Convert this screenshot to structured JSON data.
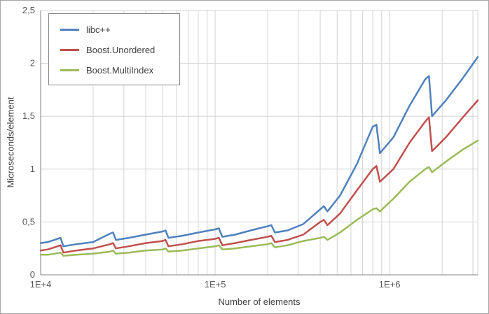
{
  "figure": {
    "background": "#FFFFFF",
    "border_color": "#A6A6A6"
  },
  "axes": {
    "text_color": "#595959",
    "gridline_color": "#D3D3D3",
    "axis_line_color": "#808080",
    "y_ticks": [
      {
        "value": 0,
        "label": "0"
      },
      {
        "value": 0.5,
        "label": "0,5"
      },
      {
        "value": 1,
        "label": "1"
      },
      {
        "value": 1.5,
        "label": "1,5"
      },
      {
        "value": 2,
        "label": "2"
      },
      {
        "value": 2.5,
        "label": "2,5"
      }
    ],
    "x_ticks": [
      {
        "value": 10000,
        "label": "1E+4"
      },
      {
        "value": 100000,
        "label": "1E+5"
      },
      {
        "value": 1000000,
        "label": "1E+6"
      }
    ]
  },
  "chart_data": {
    "type": "line",
    "title": "",
    "xlabel": "Number of elements",
    "ylabel": "Microseconds/element",
    "x_scale": "log",
    "xlim": [
      10000,
      3200000
    ],
    "ylim": [
      0,
      2.5
    ],
    "grid": true,
    "legend_position": "top-left",
    "x": [
      10000,
      11000,
      12000,
      13000,
      13500,
      16000,
      20000,
      25000,
      26000,
      27000,
      32000,
      40000,
      50000,
      52000,
      54000,
      65000,
      80000,
      100000,
      105000,
      110000,
      130000,
      160000,
      200000,
      210000,
      220000,
      260000,
      320000,
      400000,
      420000,
      440000,
      520000,
      650000,
      800000,
      840000,
      880000,
      1050000,
      1300000,
      1600000,
      1680000,
      1750000,
      2100000,
      2600000,
      3200000
    ],
    "series": [
      {
        "name": "libc++",
        "color": "#4F81BD",
        "values": [
          0.3,
          0.31,
          0.33,
          0.35,
          0.27,
          0.29,
          0.31,
          0.39,
          0.4,
          0.33,
          0.35,
          0.38,
          0.41,
          0.42,
          0.35,
          0.37,
          0.4,
          0.43,
          0.44,
          0.36,
          0.38,
          0.42,
          0.46,
          0.47,
          0.4,
          0.42,
          0.48,
          0.62,
          0.65,
          0.6,
          0.75,
          1.05,
          1.4,
          1.42,
          1.15,
          1.3,
          1.6,
          1.85,
          1.88,
          1.5,
          1.65,
          1.85,
          2.06
        ]
      },
      {
        "name": "Boost.Unordered",
        "color": "#C0504D",
        "values": [
          0.23,
          0.24,
          0.26,
          0.28,
          0.21,
          0.23,
          0.25,
          0.29,
          0.3,
          0.25,
          0.27,
          0.3,
          0.32,
          0.33,
          0.27,
          0.29,
          0.32,
          0.34,
          0.35,
          0.28,
          0.3,
          0.33,
          0.36,
          0.37,
          0.31,
          0.33,
          0.38,
          0.5,
          0.52,
          0.47,
          0.58,
          0.8,
          1.0,
          1.03,
          0.88,
          1.0,
          1.25,
          1.45,
          1.49,
          1.17,
          1.3,
          1.48,
          1.65
        ]
      },
      {
        "name": "Boost.MultiIndex",
        "color": "#9BBB59",
        "values": [
          0.19,
          0.19,
          0.2,
          0.21,
          0.18,
          0.19,
          0.2,
          0.22,
          0.23,
          0.2,
          0.21,
          0.23,
          0.24,
          0.25,
          0.22,
          0.23,
          0.25,
          0.27,
          0.28,
          0.24,
          0.25,
          0.27,
          0.29,
          0.3,
          0.26,
          0.28,
          0.32,
          0.35,
          0.36,
          0.33,
          0.4,
          0.52,
          0.62,
          0.63,
          0.6,
          0.72,
          0.88,
          1.0,
          1.02,
          0.97,
          1.07,
          1.18,
          1.27
        ]
      }
    ]
  }
}
